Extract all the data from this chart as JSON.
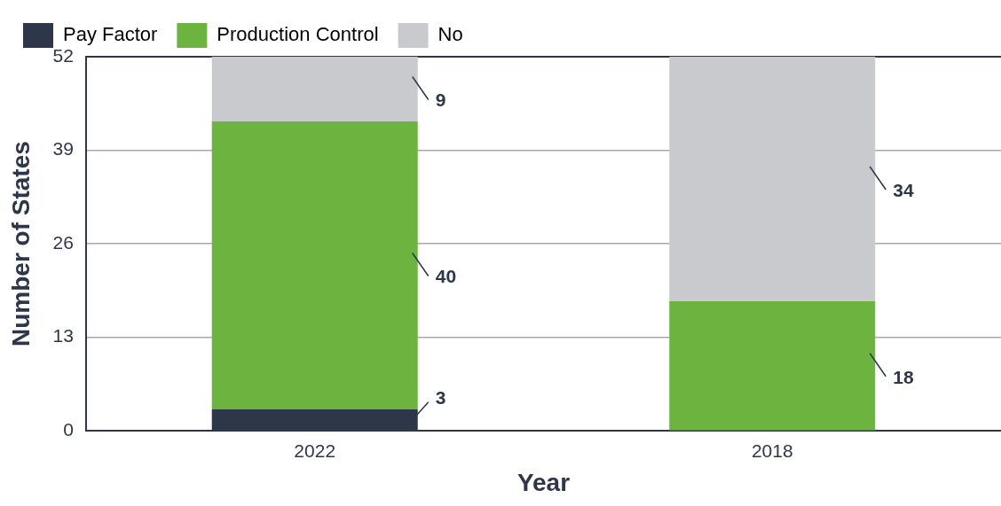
{
  "chart_data": {
    "type": "bar",
    "stacked": true,
    "xlabel": "Year",
    "ylabel": "Number of States",
    "categories": [
      "2022",
      "2018"
    ],
    "series": [
      {
        "name": "Pay Factor",
        "color": "#2e3649",
        "values": [
          3,
          null
        ]
      },
      {
        "name": "Production Control",
        "color": "#6cb43f",
        "values": [
          40,
          18
        ]
      },
      {
        "name": "No",
        "color": "#c9cacd",
        "values": [
          9,
          34
        ]
      }
    ],
    "ylim": [
      0,
      52
    ],
    "yticks": [
      0,
      13,
      26,
      39,
      52
    ],
    "grid": "y",
    "legend": "top left",
    "data_labels": true
  }
}
